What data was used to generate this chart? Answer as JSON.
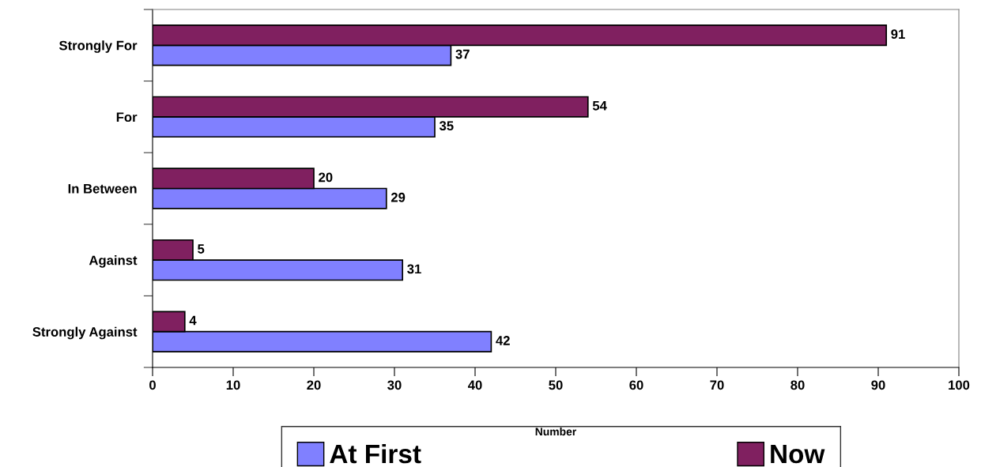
{
  "chart_data": {
    "type": "bar",
    "orientation": "horizontal",
    "xlabel": "Number",
    "categories": [
      "Strongly For",
      "For",
      "In Between",
      "Against",
      "Strongly Against"
    ],
    "series": [
      {
        "name": "At First",
        "color": "#8080ff",
        "values": [
          37,
          35,
          29,
          31,
          42
        ]
      },
      {
        "name": "Now",
        "color": "#802060",
        "values": [
          91,
          54,
          20,
          5,
          4
        ]
      }
    ],
    "xlim": [
      0,
      100
    ],
    "xticks": [
      0,
      10,
      20,
      30,
      40,
      50,
      60,
      70,
      80,
      90,
      100
    ],
    "data_labels": true,
    "legend": "bottom",
    "grid": false
  }
}
